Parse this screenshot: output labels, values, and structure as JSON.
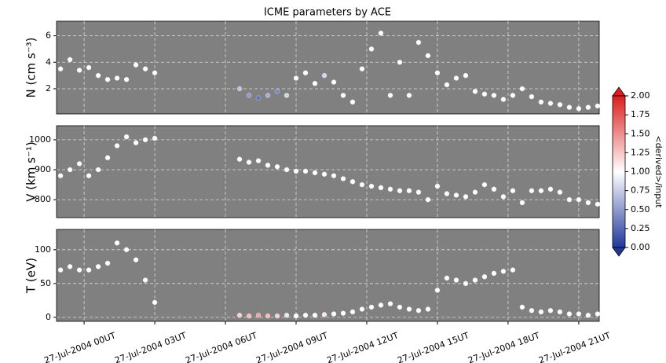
{
  "title": "ICME parameters by ACE",
  "colorbar": {
    "label": "<derived>/input",
    "lim": [
      0,
      2
    ],
    "ticks": [
      {
        "value": 0,
        "label": "0.00"
      },
      {
        "value": 0.25,
        "label": "0.25"
      },
      {
        "value": 0.5,
        "label": "0.50"
      },
      {
        "value": 0.75,
        "label": "0.75"
      },
      {
        "value": 1,
        "label": "1.00"
      },
      {
        "value": 1.25,
        "label": "1.25"
      },
      {
        "value": 1.5,
        "label": "1.50"
      },
      {
        "value": 1.75,
        "label": "1.75"
      },
      {
        "value": 2,
        "label": "2.00"
      }
    ]
  },
  "chart_data": [
    {
      "type": "scatter",
      "ylabel": "N (cm s⁻³)",
      "grid": true,
      "xlim": [
        -1.17,
        21.87
      ],
      "ylim": [
        0.1,
        7.1
      ],
      "yticks": [
        2,
        4,
        6
      ],
      "x": [
        -1.0,
        -0.6,
        -0.2,
        0.2,
        0.6,
        1.0,
        1.4,
        1.8,
        2.2,
        2.6,
        3.0,
        6.6,
        7.0,
        7.4,
        7.8,
        8.2,
        8.6,
        9.0,
        9.4,
        9.8,
        10.2,
        10.6,
        11.0,
        11.4,
        11.8,
        12.2,
        12.6,
        13.0,
        13.4,
        13.8,
        14.2,
        14.6,
        15.0,
        15.4,
        15.8,
        16.2,
        16.6,
        17.0,
        17.4,
        17.8,
        18.2,
        18.6,
        19.0,
        19.4,
        19.8,
        20.2,
        20.6,
        21.0,
        21.4,
        21.8
      ],
      "series": [
        {
          "color": "#ffffff",
          "values": [
            3.5,
            4.2,
            3.4,
            3.6,
            3.0,
            2.7,
            2.8,
            2.7,
            3.8,
            3.5,
            3.2,
            2.0,
            1.5,
            1.3,
            1.5,
            1.8,
            1.5,
            2.8,
            3.2,
            2.4,
            3.0,
            2.5,
            1.5,
            1.0,
            3.5,
            5.0,
            6.2,
            1.5,
            4.0,
            1.5,
            5.5,
            4.5,
            3.2,
            2.3,
            2.8,
            3.0,
            1.8,
            1.6,
            1.5,
            1.2,
            1.5,
            2.0,
            1.4,
            1.0,
            0.9,
            0.8,
            0.6,
            0.5,
            0.6,
            0.7
          ],
          "ratios": [
            1,
            1,
            1,
            1,
            1,
            1,
            1,
            1,
            1,
            1,
            1,
            0.7,
            0.5,
            0.3,
            0.6,
            0.4,
            0.8,
            1,
            1,
            1,
            0.8,
            1,
            1,
            1,
            1,
            1,
            1,
            1,
            1,
            1,
            1,
            1,
            1,
            1,
            1,
            1,
            1,
            1,
            1,
            1,
            1,
            1,
            1,
            1,
            1,
            1,
            1,
            1,
            1,
            1
          ]
        }
      ]
    },
    {
      "type": "scatter",
      "ylabel": "V (km s⁻¹)",
      "grid": true,
      "xlim": [
        -1.17,
        21.87
      ],
      "ylim": [
        740,
        1047
      ],
      "yticks": [
        800,
        900,
        1000
      ],
      "x": [
        -1.0,
        -0.6,
        -0.2,
        0.2,
        0.6,
        1.0,
        1.4,
        1.8,
        2.2,
        2.6,
        3.0,
        6.6,
        7.0,
        7.4,
        7.8,
        8.2,
        8.6,
        9.0,
        9.4,
        9.8,
        10.2,
        10.6,
        11.0,
        11.4,
        11.8,
        12.2,
        12.6,
        13.0,
        13.4,
        13.8,
        14.2,
        14.6,
        15.0,
        15.4,
        15.8,
        16.2,
        16.6,
        17.0,
        17.4,
        17.8,
        18.2,
        18.6,
        19.0,
        19.4,
        19.8,
        20.2,
        20.6,
        21.0,
        21.4,
        21.8
      ],
      "series": [
        {
          "color": "#ffffff",
          "values": [
            880,
            900,
            920,
            880,
            900,
            940,
            980,
            1010,
            990,
            1000,
            1005,
            935,
            925,
            930,
            915,
            910,
            900,
            895,
            895,
            890,
            885,
            880,
            870,
            860,
            850,
            845,
            840,
            835,
            830,
            830,
            825,
            800,
            845,
            820,
            815,
            810,
            825,
            850,
            835,
            810,
            830,
            790,
            830,
            830,
            835,
            825,
            800,
            800,
            790,
            785
          ]
        }
      ]
    },
    {
      "type": "scatter",
      "ylabel": "T (eV)",
      "grid": true,
      "xlim": [
        -1.17,
        21.87
      ],
      "ylim": [
        -6,
        130
      ],
      "yticks": [
        0,
        50,
        100
      ],
      "xticks": [
        {
          "value": 0,
          "label": "27-Jul-2004 00UT"
        },
        {
          "value": 3,
          "label": "27-Jul-2004 03UT"
        },
        {
          "value": 6,
          "label": "27-Jul-2004 06UT"
        },
        {
          "value": 9,
          "label": "27-Jul-2004 09UT"
        },
        {
          "value": 12,
          "label": "27-Jul-2004 12UT"
        },
        {
          "value": 15,
          "label": "27-Jul-2004 15UT"
        },
        {
          "value": 18,
          "label": "27-Jul-2004 18UT"
        },
        {
          "value": 21,
          "label": "27-Jul-2004 21UT"
        }
      ],
      "x": [
        -1.0,
        -0.6,
        -0.2,
        0.2,
        0.6,
        1.0,
        1.4,
        1.8,
        2.2,
        2.6,
        3.0,
        6.6,
        7.0,
        7.4,
        7.8,
        8.2,
        8.6,
        9.0,
        9.4,
        9.8,
        10.2,
        10.6,
        11.0,
        11.4,
        11.8,
        12.2,
        12.6,
        13.0,
        13.4,
        13.8,
        14.2,
        14.6,
        15.0,
        15.4,
        15.8,
        16.2,
        16.6,
        17.0,
        17.4,
        17.8,
        18.2,
        18.6,
        19.0,
        19.4,
        19.8,
        20.2,
        20.6,
        21.0,
        21.4,
        21.8
      ],
      "series": [
        {
          "color": "#ffffff",
          "values": [
            70,
            75,
            70,
            70,
            75,
            80,
            110,
            100,
            85,
            55,
            22,
            3,
            2,
            3,
            2,
            2,
            3,
            2,
            3,
            3,
            4,
            5,
            6,
            8,
            12,
            15,
            18,
            20,
            15,
            12,
            10,
            12,
            40,
            58,
            55,
            50,
            55,
            60,
            65,
            68,
            70,
            15,
            10,
            8,
            10,
            8,
            5,
            5,
            3,
            5
          ],
          "ratios": [
            1,
            1,
            1,
            1,
            1,
            1,
            1,
            1,
            1,
            1,
            1,
            1.2,
            1.3,
            1.4,
            1.3,
            1.2,
            0.9,
            1,
            1,
            1,
            1.1,
            1,
            1,
            1,
            1,
            1,
            1,
            1,
            1,
            1,
            1,
            1,
            1,
            1,
            1,
            1,
            1,
            1,
            1,
            1,
            1,
            1,
            1,
            1,
            1,
            1,
            1,
            1,
            1,
            1
          ]
        }
      ]
    }
  ]
}
